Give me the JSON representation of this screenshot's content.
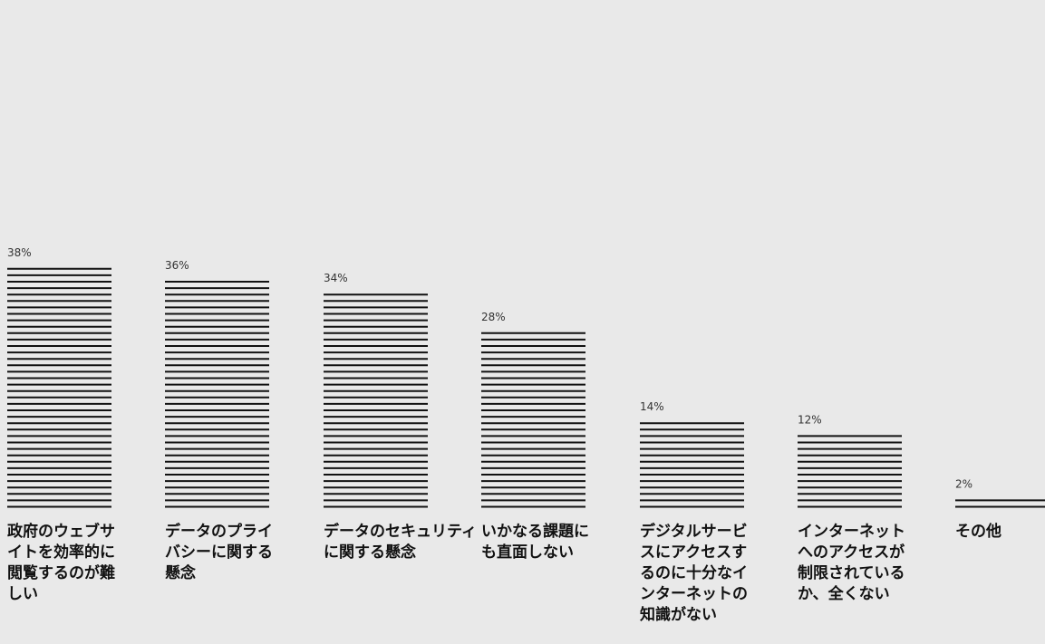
{
  "chart_data": {
    "type": "bar",
    "style": "stacked-horizontal-lines",
    "categories": [
      "政府のウェブサイトを効率的に閲覧するのが難しい",
      "データのプライバシーに関する懸念",
      "データのセキュリティに関する懸念",
      "いかなる課題にも直面しない",
      "デジタルサービスにアクセスするのに十分なインターネットの知識がない",
      "インターネットへのアクセスが制限されているか、全くない",
      "その他"
    ],
    "values": [
      38,
      36,
      34,
      28,
      14,
      12,
      2
    ],
    "value_labels": [
      "38%",
      "36%",
      "34%",
      "28%",
      "14%",
      "12%",
      "2%"
    ],
    "units": "%",
    "ylim": [
      0,
      38
    ],
    "grid": false,
    "legend": "none",
    "colors": {
      "background": "#e9e9e9",
      "bar_line": "#111111",
      "value_text": "#333333",
      "category_text": "#111111"
    }
  }
}
